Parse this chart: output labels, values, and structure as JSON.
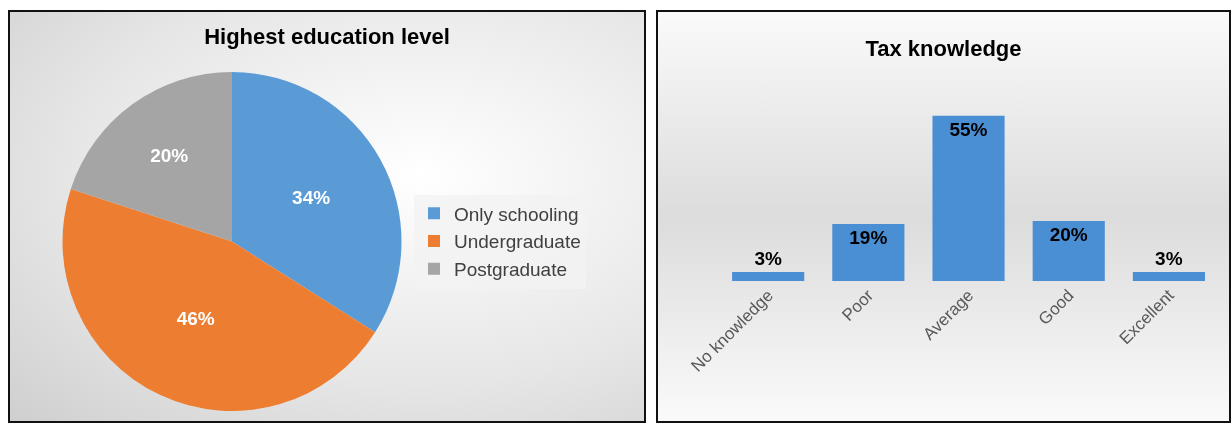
{
  "chart_data": [
    {
      "type": "pie",
      "title": "Highest education level",
      "categories": [
        "Only schooling",
        "Undergraduate",
        "Postgraduate"
      ],
      "values": [
        34,
        46,
        20
      ],
      "colors": [
        "#5b9bd5",
        "#ed7d31",
        "#a5a5a5"
      ],
      "value_labels": [
        "34%",
        "46%",
        "20%"
      ],
      "legend": "right"
    },
    {
      "type": "bar",
      "title": "Tax knowledge",
      "categories": [
        "No knowledge",
        "Poor",
        "Average",
        "Good",
        "Excellent"
      ],
      "values": [
        3,
        19,
        55,
        20,
        3
      ],
      "color": "#4a8ed4",
      "value_labels": [
        "3%",
        "19%",
        "55%",
        "20%",
        "3%"
      ]
    }
  ]
}
